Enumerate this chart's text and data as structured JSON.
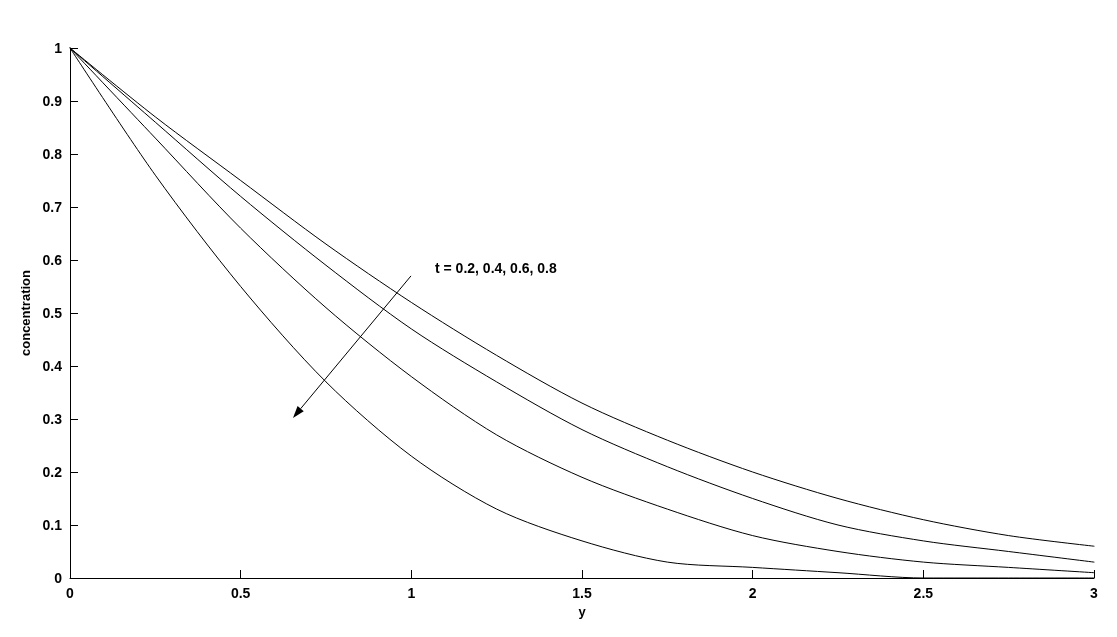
{
  "chart_data": {
    "type": "line",
    "xlabel": "y",
    "ylabel": "concentration",
    "x": [
      0,
      0.25,
      0.5,
      0.75,
      1,
      1.25,
      1.5,
      1.75,
      2,
      2.25,
      2.5,
      2.75,
      3
    ],
    "series": [
      {
        "color": "#000000",
        "values": [
          1,
          0.87,
          0.75,
          0.63,
          0.52,
          0.42,
          0.33,
          0.26,
          0.2,
          0.15,
          0.11,
          0.08,
          0.06
        ]
      },
      {
        "color": "#000000",
        "values": [
          1,
          0.86,
          0.72,
          0.59,
          0.47,
          0.37,
          0.28,
          0.21,
          0.15,
          0.1,
          0.07,
          0.05,
          0.03
        ]
      },
      {
        "color": "#000000",
        "values": [
          1,
          0.83,
          0.66,
          0.51,
          0.38,
          0.27,
          0.19,
          0.13,
          0.08,
          0.05,
          0.03,
          0.02,
          0.01
        ]
      },
      {
        "color": "#000000",
        "values": [
          1,
          0.76,
          0.55,
          0.37,
          0.23,
          0.13,
          0.07,
          0.03,
          0.02,
          0.01,
          0,
          0,
          0
        ]
      }
    ],
    "xlim": [
      0,
      3
    ],
    "xticks": [
      0,
      0.5,
      1,
      1.5,
      2,
      2.5,
      3
    ],
    "ylim": [
      0,
      1
    ],
    "yticks": [
      0,
      0.1,
      0.2,
      0.3,
      0.4,
      0.5,
      0.6,
      0.7,
      0.8,
      0.9,
      1
    ],
    "annotations": [
      "t = 0.2, 0.4, 0.6, 0.8"
    ],
    "grid": false,
    "marker": "none",
    "line_style": "solid"
  }
}
